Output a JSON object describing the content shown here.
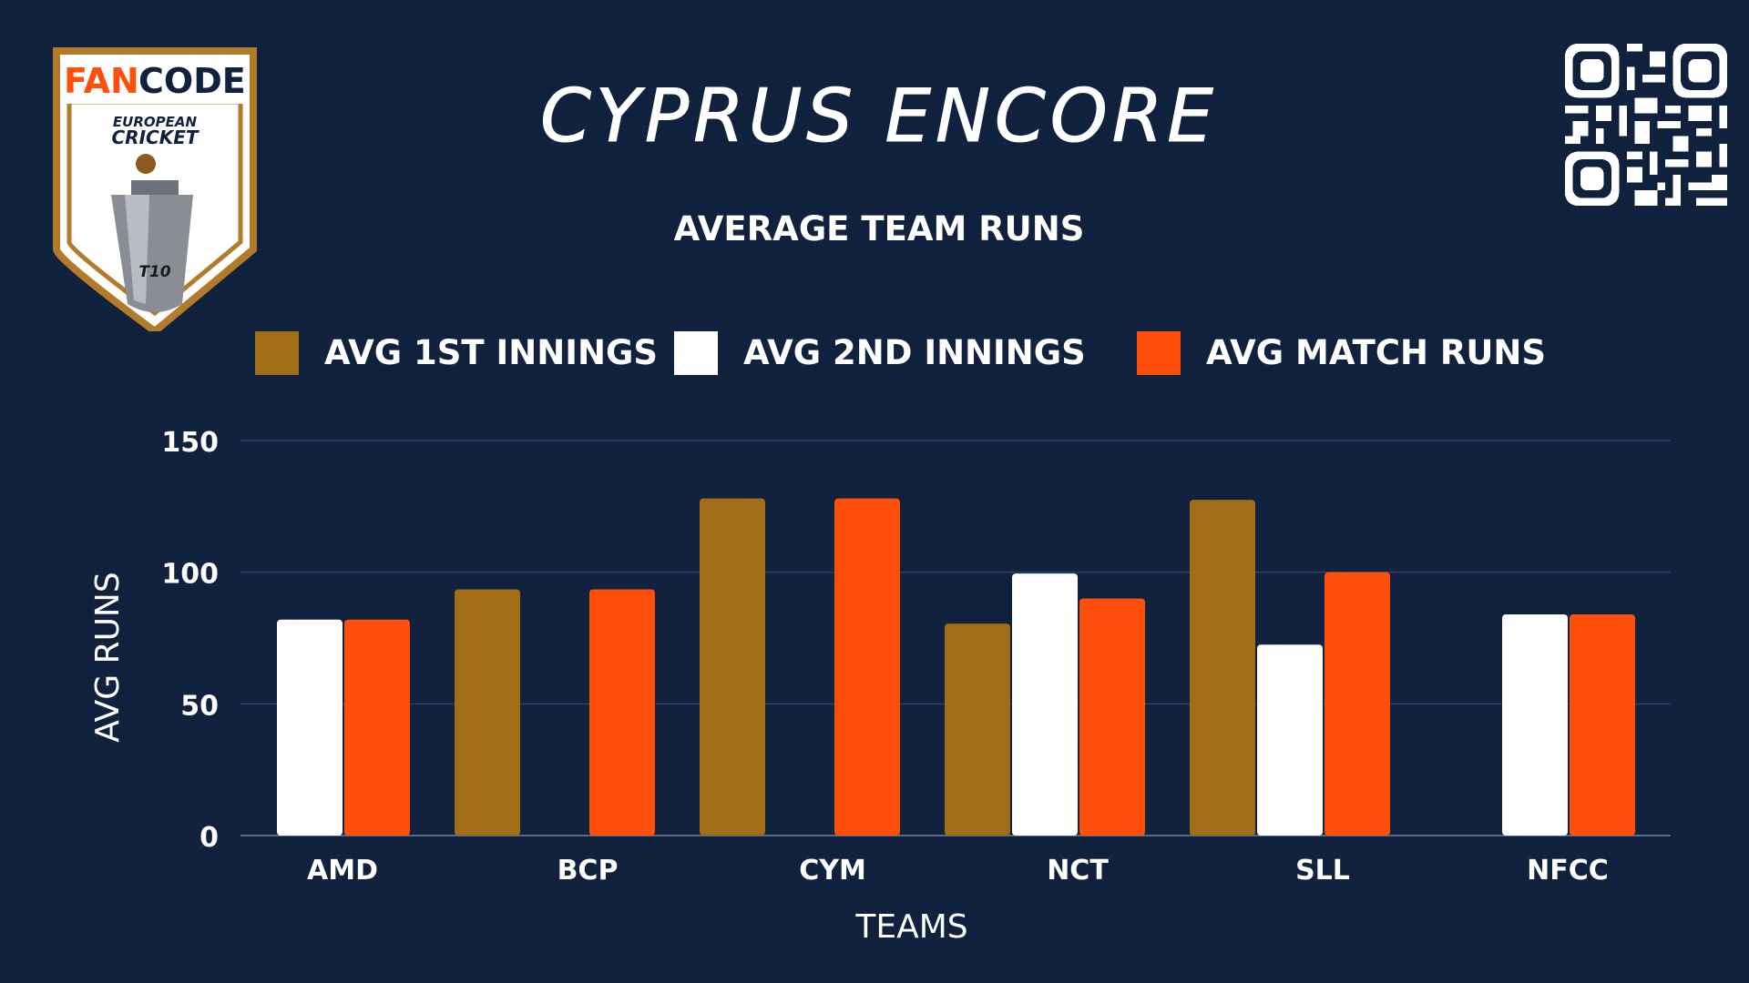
{
  "logo": {
    "brand_fan": "FAN",
    "brand_code": "CODE",
    "line1": "EUROPEAN",
    "line2": "CRICKET",
    "format": "T10"
  },
  "qr_icon": "qr-code-icon",
  "colors": {
    "background": "#0f213d",
    "first_innings": "#a16d17",
    "second_innings": "#ffffff",
    "match_runs": "#ff4f0a"
  },
  "chart_data": {
    "type": "bar",
    "title": "CYPRUS ENCORE",
    "subtitle": "AVERAGE TEAM RUNS",
    "xlabel": "TEAMS",
    "ylabel": "AVG RUNS",
    "ylim": [
      0,
      150
    ],
    "yticks": [
      0,
      50,
      100,
      150
    ],
    "grid": true,
    "legend_position": "top",
    "categories": [
      "AMD",
      "BCP",
      "CYM",
      "NCT",
      "SLL",
      "NFCC"
    ],
    "series": [
      {
        "name": "AVG 1ST INNINGS",
        "color": "#a16d17",
        "values": [
          0,
          93.5,
          128,
          80.5,
          127.5,
          0
        ]
      },
      {
        "name": "AVG 2ND INNINGS",
        "color": "#ffffff",
        "values": [
          82,
          0,
          0,
          99.5,
          72.5,
          84
        ]
      },
      {
        "name": "AVG MATCH RUNS",
        "color": "#ff4f0a",
        "values": [
          82,
          93.5,
          128,
          90,
          100,
          84
        ]
      }
    ]
  }
}
